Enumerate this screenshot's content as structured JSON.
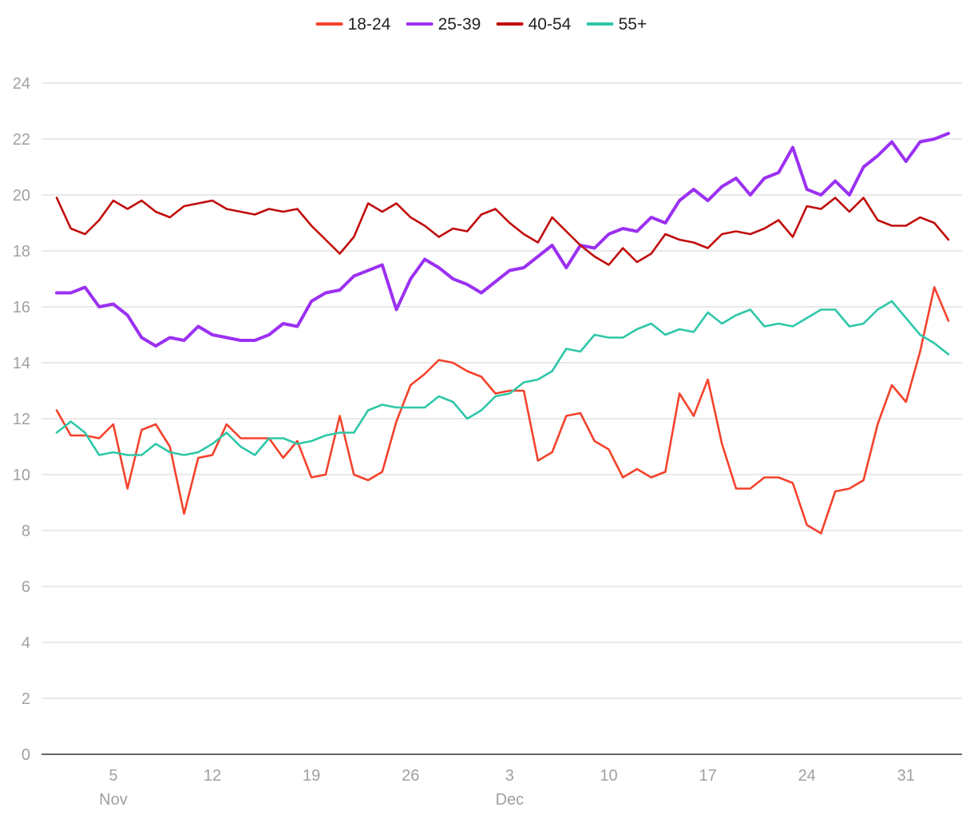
{
  "chart_data": {
    "type": "line",
    "title": "",
    "xlabel": "",
    "ylabel": "",
    "ylim": [
      0,
      24
    ],
    "y_ticks": [
      0,
      2,
      4,
      6,
      8,
      10,
      12,
      14,
      16,
      18,
      20,
      22,
      24
    ],
    "grid": "horizontal",
    "legend_position": "top-center",
    "x_ticks": [
      {
        "date": "2023-11-05",
        "label": "5",
        "sublabel": "Nov"
      },
      {
        "date": "2023-11-12",
        "label": "12",
        "sublabel": ""
      },
      {
        "date": "2023-11-19",
        "label": "19",
        "sublabel": ""
      },
      {
        "date": "2023-11-26",
        "label": "26",
        "sublabel": ""
      },
      {
        "date": "2023-12-03",
        "label": "3",
        "sublabel": "Dec"
      },
      {
        "date": "2023-12-10",
        "label": "10",
        "sublabel": ""
      },
      {
        "date": "2023-12-17",
        "label": "17",
        "sublabel": ""
      },
      {
        "date": "2023-12-24",
        "label": "24",
        "sublabel": ""
      },
      {
        "date": "2023-12-31",
        "label": "31",
        "sublabel": ""
      }
    ],
    "x": [
      "2023-11-01",
      "2023-11-02",
      "2023-11-03",
      "2023-11-04",
      "2023-11-05",
      "2023-11-06",
      "2023-11-07",
      "2023-11-08",
      "2023-11-09",
      "2023-11-10",
      "2023-11-11",
      "2023-11-12",
      "2023-11-13",
      "2023-11-14",
      "2023-11-15",
      "2023-11-16",
      "2023-11-17",
      "2023-11-18",
      "2023-11-19",
      "2023-11-20",
      "2023-11-21",
      "2023-11-22",
      "2023-11-23",
      "2023-11-24",
      "2023-11-25",
      "2023-11-26",
      "2023-11-27",
      "2023-11-28",
      "2023-11-29",
      "2023-11-30",
      "2023-12-01",
      "2023-12-02",
      "2023-12-03",
      "2023-12-04",
      "2023-12-05",
      "2023-12-06",
      "2023-12-07",
      "2023-12-08",
      "2023-12-09",
      "2023-12-10",
      "2023-12-11",
      "2023-12-12",
      "2023-12-13",
      "2023-12-14",
      "2023-12-15",
      "2023-12-16",
      "2023-12-17",
      "2023-12-18",
      "2023-12-19",
      "2023-12-20",
      "2023-12-21",
      "2023-12-22",
      "2023-12-23",
      "2023-12-24",
      "2023-12-25",
      "2023-12-26",
      "2023-12-27",
      "2023-12-28",
      "2023-12-29",
      "2023-12-30",
      "2023-12-31",
      "2024-01-01",
      "2024-01-02",
      "2024-01-03"
    ],
    "series": [
      {
        "name": "18-24",
        "color": "#f4422c",
        "width": 2.6,
        "values": [
          12.3,
          11.4,
          11.4,
          11.3,
          11.8,
          9.5,
          11.6,
          11.8,
          11.0,
          8.6,
          10.6,
          10.7,
          11.8,
          11.3,
          11.3,
          11.3,
          10.6,
          11.2,
          9.9,
          10.0,
          12.1,
          10.0,
          9.8,
          10.1,
          11.9,
          13.2,
          13.6,
          14.1,
          14.0,
          13.7,
          13.5,
          12.9,
          13.0,
          13.0,
          10.5,
          10.8,
          12.1,
          12.2,
          11.2,
          10.9,
          9.9,
          10.2,
          9.9,
          10.1,
          12.9,
          12.1,
          13.4,
          11.1,
          9.5,
          9.5,
          9.9,
          9.9,
          9.7,
          8.2,
          7.9,
          9.4,
          9.5,
          9.8,
          11.8,
          13.2,
          12.6,
          14.4,
          16.7,
          15.5
        ]
      },
      {
        "name": "25-39",
        "color": "#9b30f2",
        "width": 4,
        "values": [
          16.5,
          16.5,
          16.7,
          16.0,
          16.1,
          15.7,
          14.9,
          14.6,
          14.9,
          14.8,
          15.3,
          15.0,
          14.9,
          14.8,
          14.8,
          15.0,
          15.4,
          15.3,
          16.2,
          16.5,
          16.6,
          17.1,
          17.3,
          17.5,
          15.9,
          17.0,
          17.7,
          17.4,
          17.0,
          16.8,
          16.5,
          16.9,
          17.3,
          17.4,
          17.8,
          18.2,
          17.4,
          18.2,
          18.1,
          18.6,
          18.8,
          18.7,
          19.2,
          19.0,
          19.8,
          20.2,
          19.8,
          20.3,
          20.6,
          20.0,
          20.6,
          20.8,
          21.7,
          20.2,
          20.0,
          20.5,
          20.0,
          21.0,
          21.4,
          21.9,
          21.2,
          21.9,
          22.0,
          22.2
        ]
      },
      {
        "name": "40-54",
        "color": "#c00d0d",
        "width": 2.6,
        "values": [
          19.9,
          18.8,
          18.6,
          19.1,
          19.8,
          19.5,
          19.8,
          19.4,
          19.2,
          19.6,
          19.7,
          19.8,
          19.5,
          19.4,
          19.3,
          19.5,
          19.4,
          19.5,
          18.9,
          18.4,
          17.9,
          18.5,
          19.7,
          19.4,
          19.7,
          19.2,
          18.9,
          18.5,
          18.8,
          18.7,
          19.3,
          19.5,
          19.0,
          18.6,
          18.3,
          19.2,
          18.7,
          18.2,
          17.8,
          17.5,
          18.1,
          17.6,
          17.9,
          18.6,
          18.4,
          18.3,
          18.1,
          18.6,
          18.7,
          18.6,
          18.8,
          19.1,
          18.5,
          19.6,
          19.5,
          19.9,
          19.4,
          19.9,
          19.1,
          18.9,
          18.9,
          19.2,
          19.0,
          18.4
        ]
      },
      {
        "name": "55+",
        "color": "#2ec7a8",
        "width": 2.6,
        "values": [
          11.5,
          11.9,
          11.5,
          10.7,
          10.8,
          10.7,
          10.7,
          11.1,
          10.8,
          10.7,
          10.8,
          11.1,
          11.5,
          11.0,
          10.7,
          11.3,
          11.3,
          11.1,
          11.2,
          11.4,
          11.5,
          11.5,
          12.3,
          12.5,
          12.4,
          12.4,
          12.4,
          12.8,
          12.6,
          12.0,
          12.3,
          12.8,
          12.9,
          13.3,
          13.4,
          13.7,
          14.5,
          14.4,
          15.0,
          14.9,
          14.9,
          15.2,
          15.4,
          15.0,
          15.2,
          15.1,
          15.8,
          15.4,
          15.7,
          15.9,
          15.3,
          15.4,
          15.3,
          15.6,
          15.9,
          15.9,
          15.3,
          15.4,
          15.9,
          16.2,
          15.6,
          15.0,
          14.7,
          14.3
        ]
      }
    ]
  }
}
